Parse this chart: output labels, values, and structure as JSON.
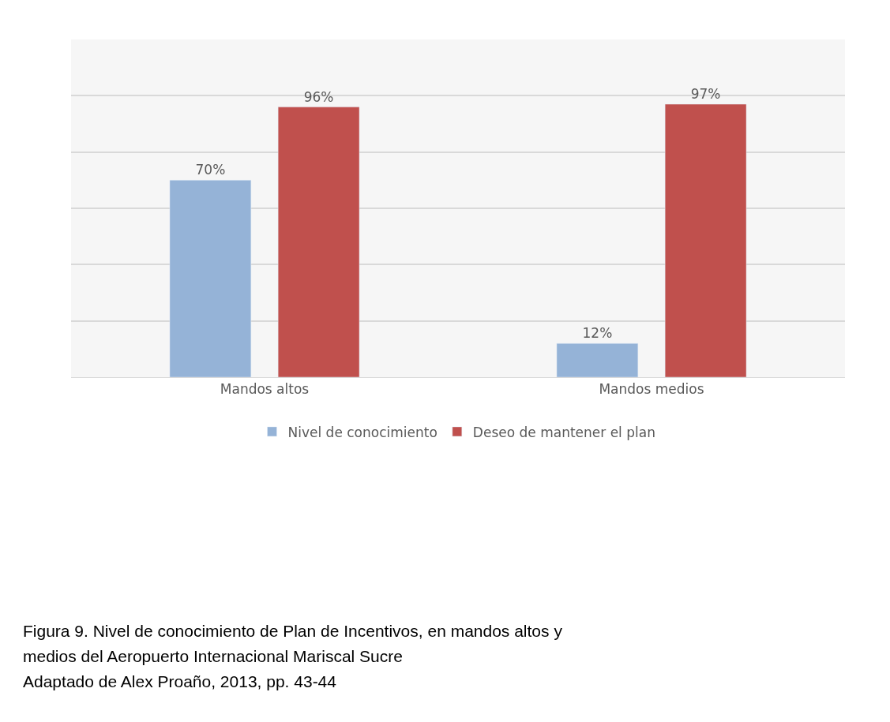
{
  "chart_data": {
    "type": "bar",
    "categories": [
      "Mandos altos",
      "Mandos medios"
    ],
    "series": [
      {
        "name": "Nivel de conocimiento",
        "color": "#95b3d7",
        "values": [
          70,
          12
        ],
        "value_labels": [
          "70%",
          "12%"
        ]
      },
      {
        "name": "Deseo de mantener el plan",
        "color": "#c0504d",
        "values": [
          96,
          97
        ],
        "value_labels": [
          "96%",
          "97%"
        ]
      }
    ],
    "relative": false,
    "ylim": [
      0,
      120
    ],
    "yticks": [
      {
        "value": 0,
        "label": null
      },
      {
        "value": 20,
        "label": null
      },
      {
        "value": 40,
        "label": null
      },
      {
        "value": 60,
        "label": null
      },
      {
        "value": 80,
        "label": null
      },
      {
        "value": 100,
        "label": null
      },
      {
        "value": 120,
        "label": null
      }
    ],
    "tick_labels": "x",
    "grid": "y",
    "legend": "bottom",
    "annotations": [
      "Figura 9. Nivel de conocimiento de Plan de Incentivos, en mandos altos y",
      "medios del Aeropuerto Internacional Mariscal Sucre",
      "Adaptado de Alex Proaño, 2013, pp. 43-44"
    ]
  }
}
